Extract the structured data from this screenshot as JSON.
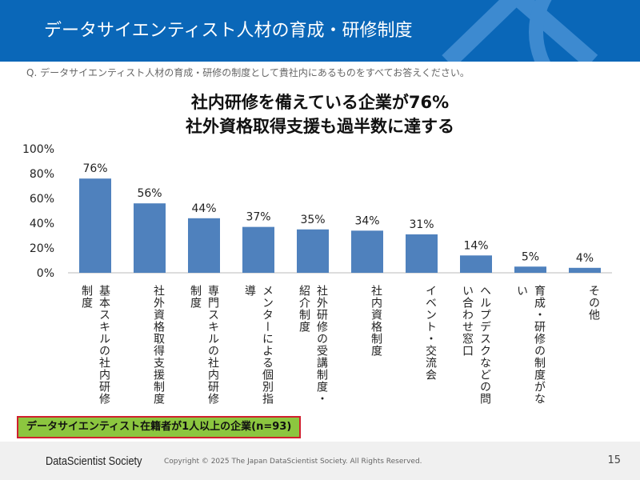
{
  "header": {
    "title": "データサイエンティスト人材の育成・研修制度"
  },
  "question": "Q. データサイエンティスト人材の育成・研修の制度として貴社内にあるものをすべてお答えください。",
  "headline": [
    "社内研修を備えている企業が76%",
    "社外資格取得支援も過半数に達する"
  ],
  "chart_data": {
    "type": "bar",
    "categories": [
      "基本スキルの社内研修制度",
      "社外資格取得支援制度",
      "専門スキルの社内研修制度",
      "メンターによる個別指導",
      "社外研修の受講制度・紹介制度",
      "社内資格制度",
      "イベント・交流会",
      "ヘルプデスクなどの問い合わせ窓口",
      "育成・研修の制度がない",
      "その他"
    ],
    "values": [
      76,
      56,
      44,
      37,
      35,
      34,
      31,
      14,
      5,
      4
    ],
    "data_labels": [
      "76%",
      "56%",
      "44%",
      "37%",
      "35%",
      "34%",
      "31%",
      "14%",
      "5%",
      "4%"
    ],
    "ylim": [
      0,
      100
    ],
    "yticks": [
      "0%",
      "20%",
      "40%",
      "60%",
      "80%",
      "100%"
    ],
    "grid": false,
    "bar_color": "#4f81bd"
  },
  "note": "データサイエンティスト在籍者が1人以上の企業(n=93)",
  "footer": {
    "brand": "DataScientist Society",
    "copyright": "Copyright © 2025 The Japan DataScientist Society. All Rights Reserved.",
    "page": "15"
  }
}
